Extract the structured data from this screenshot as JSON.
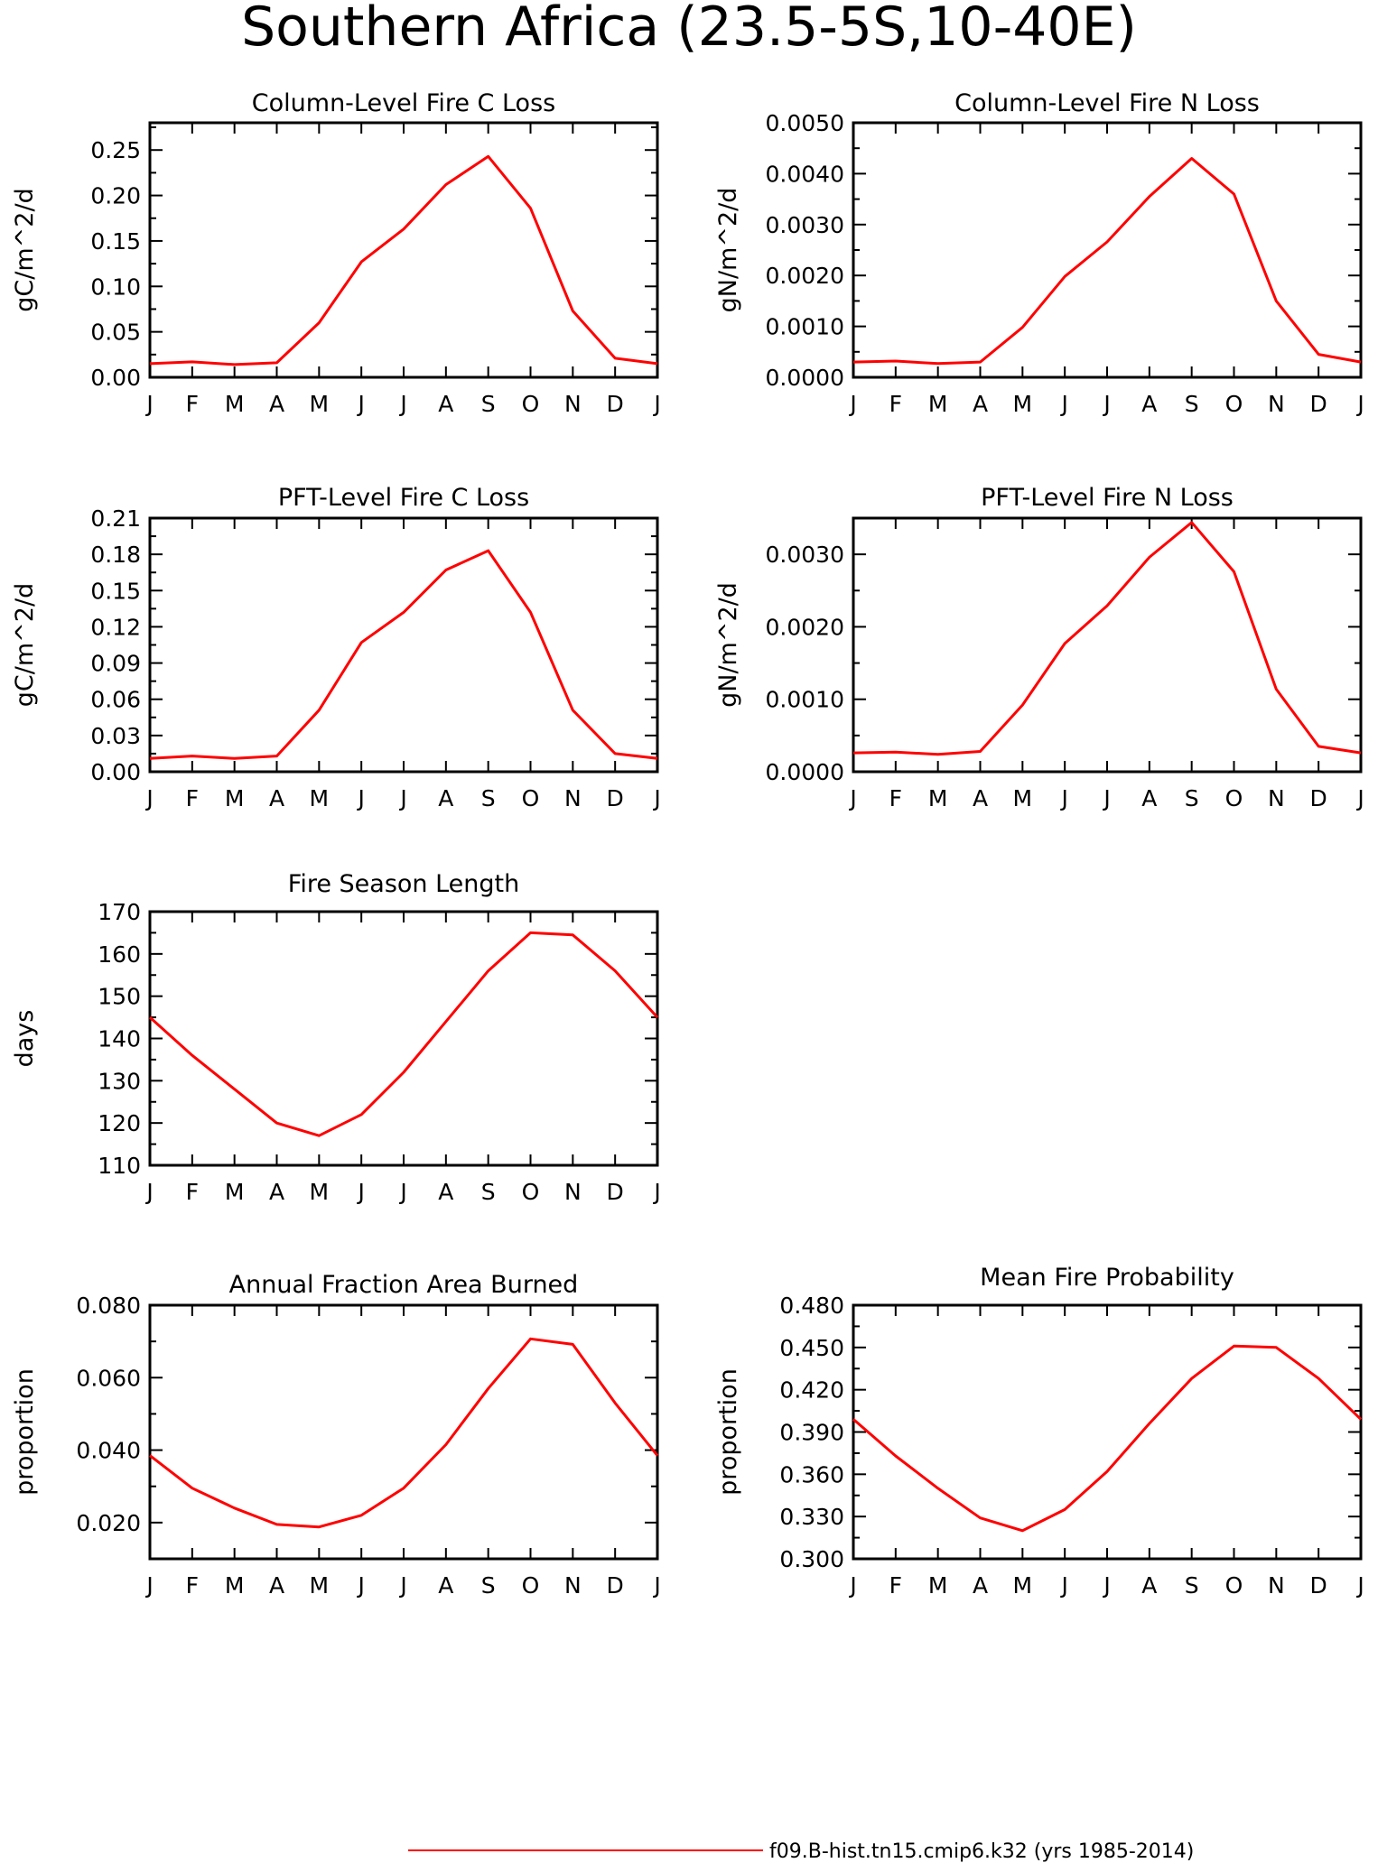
{
  "figure": {
    "title": "Southern Africa (23.5-5S,10-40E)",
    "line_color": "#ff0000"
  },
  "legend": {
    "label": "f09.B-hist.tn15.cmip6.k32 (yrs 1985-2014)"
  },
  "chart_data": [
    {
      "type": "line",
      "title": "Column-Level Fire C Loss",
      "xlabel": "",
      "ylabel": "gC/m^2/d",
      "categories": [
        "J",
        "F",
        "M",
        "A",
        "M",
        "J",
        "J",
        "A",
        "S",
        "O",
        "N",
        "D",
        "J"
      ],
      "ylim": [
        0.0,
        0.28
      ],
      "yticks": [
        "0.00",
        "0.05",
        "0.10",
        "0.15",
        "0.20",
        "0.25"
      ],
      "grid": false,
      "series": [
        {
          "values": [
            0.015,
            0.017,
            0.014,
            0.016,
            0.06,
            0.127,
            0.163,
            0.212,
            0.243,
            0.186,
            0.073,
            0.021,
            0.015
          ]
        }
      ]
    },
    {
      "type": "line",
      "title": "Column-Level Fire N Loss",
      "xlabel": "",
      "ylabel": "gN/m^2/d",
      "categories": [
        "J",
        "F",
        "M",
        "A",
        "M",
        "J",
        "J",
        "A",
        "S",
        "O",
        "N",
        "D",
        "J"
      ],
      "ylim": [
        0.0,
        0.005
      ],
      "yticks": [
        "0.0000",
        "0.0010",
        "0.0020",
        "0.0030",
        "0.0040",
        "0.0050"
      ],
      "grid": false,
      "series": [
        {
          "values": [
            0.0003,
            0.00032,
            0.00027,
            0.0003,
            0.00098,
            0.00198,
            0.00266,
            0.00355,
            0.0043,
            0.0036,
            0.0015,
            0.00045,
            0.0003
          ]
        }
      ]
    },
    {
      "type": "line",
      "title": "PFT-Level Fire C Loss",
      "xlabel": "",
      "ylabel": "gC/m^2/d",
      "categories": [
        "J",
        "F",
        "M",
        "A",
        "M",
        "J",
        "J",
        "A",
        "S",
        "O",
        "N",
        "D",
        "J"
      ],
      "ylim": [
        0.0,
        0.21
      ],
      "yticks": [
        "0.00",
        "0.03",
        "0.06",
        "0.09",
        "0.12",
        "0.15",
        "0.18",
        "0.21"
      ],
      "grid": false,
      "series": [
        {
          "values": [
            0.011,
            0.013,
            0.011,
            0.013,
            0.051,
            0.107,
            0.132,
            0.167,
            0.183,
            0.132,
            0.051,
            0.015,
            0.011
          ]
        }
      ]
    },
    {
      "type": "line",
      "title": "PFT-Level Fire N Loss",
      "xlabel": "",
      "ylabel": "gN/m^2/d",
      "categories": [
        "J",
        "F",
        "M",
        "A",
        "M",
        "J",
        "J",
        "A",
        "S",
        "O",
        "N",
        "D",
        "J"
      ],
      "ylim": [
        0.0,
        0.0035
      ],
      "yticks": [
        "0.0000",
        "0.0010",
        "0.0020",
        "0.0030"
      ],
      "grid": false,
      "series": [
        {
          "values": [
            0.00026,
            0.00027,
            0.00024,
            0.00028,
            0.00092,
            0.00177,
            0.00229,
            0.00296,
            0.00344,
            0.00276,
            0.00114,
            0.00035,
            0.00026
          ]
        }
      ]
    },
    {
      "type": "line",
      "title": "Fire Season Length",
      "xlabel": "",
      "ylabel": "days",
      "categories": [
        "J",
        "F",
        "M",
        "A",
        "M",
        "J",
        "J",
        "A",
        "S",
        "O",
        "N",
        "D",
        "J"
      ],
      "ylim": [
        110,
        170
      ],
      "yticks": [
        "110",
        "120",
        "130",
        "140",
        "150",
        "160",
        "170"
      ],
      "grid": false,
      "series": [
        {
          "values": [
            145,
            136,
            128,
            120,
            117,
            122,
            132,
            144,
            156,
            165,
            164.5,
            156,
            145
          ]
        }
      ]
    },
    {
      "type": "line",
      "title": "Annual Fraction Area Burned",
      "xlabel": "",
      "ylabel": "proportion",
      "categories": [
        "J",
        "F",
        "M",
        "A",
        "M",
        "J",
        "J",
        "A",
        "S",
        "O",
        "N",
        "D",
        "J"
      ],
      "ylim": [
        0.01,
        0.08
      ],
      "yticks": [
        "0.020",
        "0.040",
        "0.060",
        "0.080"
      ],
      "grid": false,
      "series": [
        {
          "values": [
            0.0385,
            0.0295,
            0.024,
            0.0195,
            0.0188,
            0.022,
            0.0295,
            0.0415,
            0.057,
            0.0707,
            0.0692,
            0.053,
            0.0385
          ]
        }
      ]
    },
    {
      "type": "line",
      "title": "Mean Fire Probability",
      "xlabel": "",
      "ylabel": "proportion",
      "categories": [
        "J",
        "F",
        "M",
        "A",
        "M",
        "J",
        "J",
        "A",
        "S",
        "O",
        "N",
        "D",
        "J"
      ],
      "ylim": [
        0.3,
        0.48
      ],
      "yticks": [
        "0.300",
        "0.330",
        "0.360",
        "0.390",
        "0.420",
        "0.450",
        "0.480"
      ],
      "grid": false,
      "series": [
        {
          "values": [
            0.399,
            0.373,
            0.35,
            0.329,
            0.32,
            0.335,
            0.362,
            0.396,
            0.428,
            0.451,
            0.45,
            0.428,
            0.399
          ]
        }
      ]
    }
  ]
}
